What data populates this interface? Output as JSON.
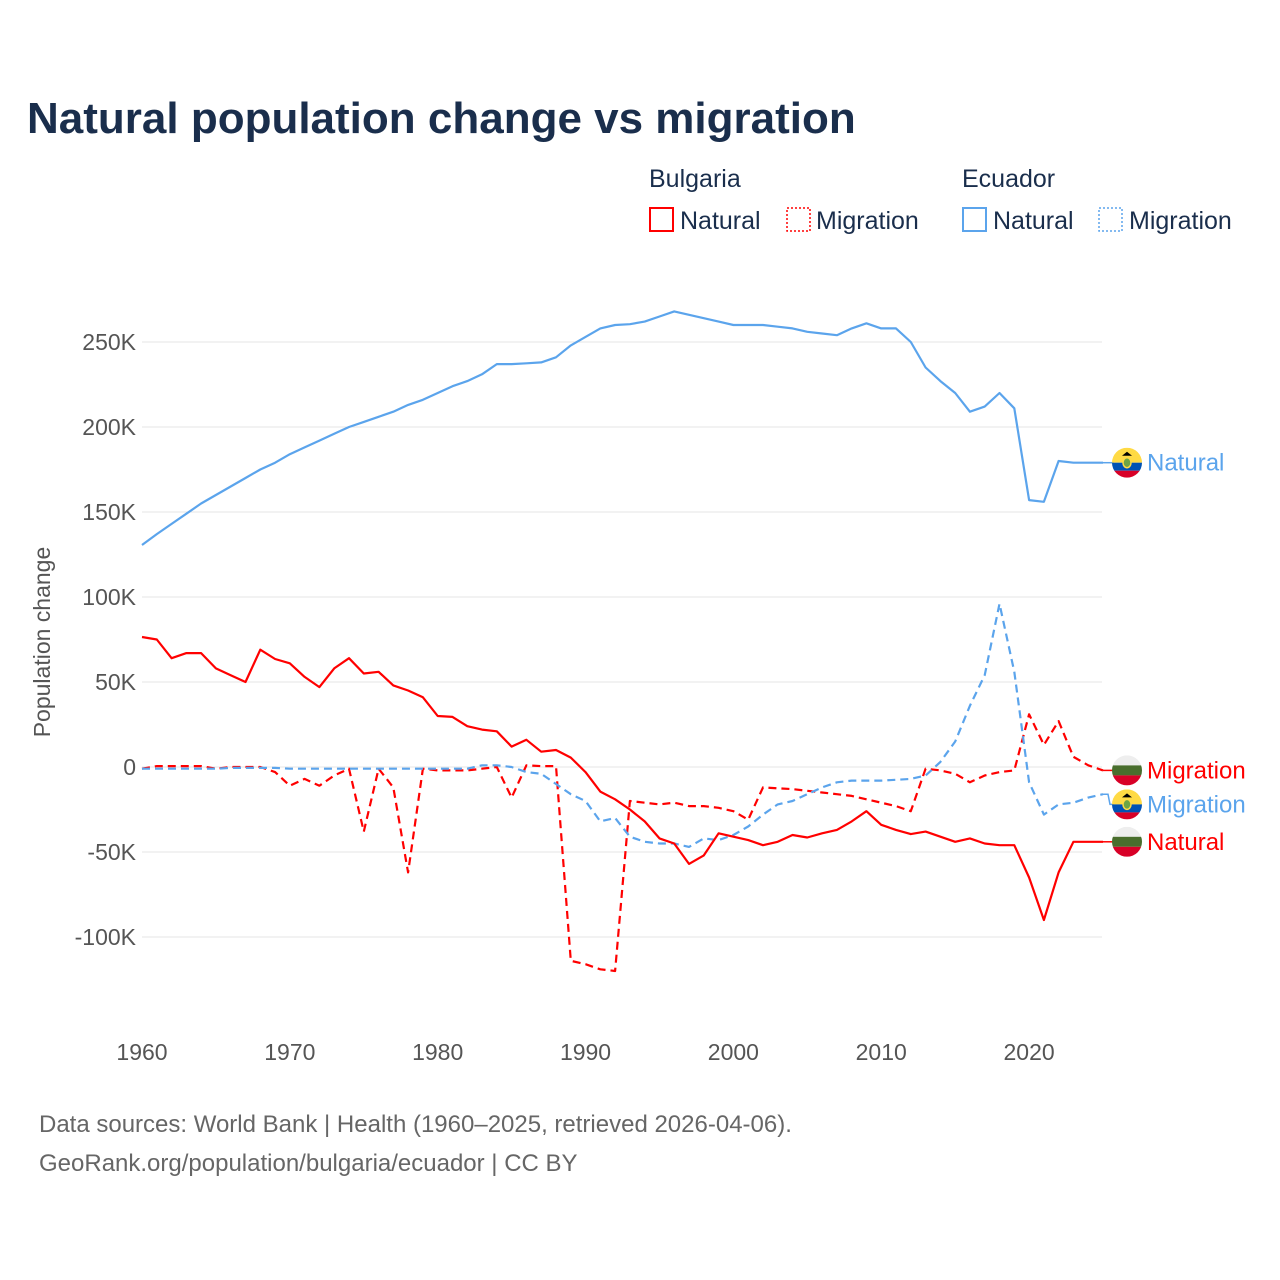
{
  "title": "Natural population change vs migration",
  "legend": [
    {
      "country": "Bulgaria",
      "items": [
        {
          "label": "Natural",
          "style": "solid"
        },
        {
          "label": "Migration",
          "style": "dotted"
        }
      ],
      "color": "#ff0000"
    },
    {
      "country": "Ecuador",
      "items": [
        {
          "label": "Natural",
          "style": "solid"
        },
        {
          "label": "Migration",
          "style": "dotted"
        }
      ],
      "color": "#5ba4ec"
    }
  ],
  "footer": {
    "line1": "Data sources: World Bank | Health (1960–2025, retrieved 2026-04-06).",
    "line2": "GeoRank.org/population/bulgaria/ecuador | CC BY"
  },
  "chart_data": {
    "type": "line",
    "title": "Natural population change vs migration",
    "xlabel": "",
    "ylabel": "Population change",
    "xlim": [
      1960,
      2025
    ],
    "ylim": [
      -145000,
      275000
    ],
    "xticks": [
      1960,
      1970,
      1980,
      1990,
      2000,
      2010,
      2020
    ],
    "yticks": [
      {
        "v": 250000,
        "label": "250K"
      },
      {
        "v": 200000,
        "label": "200K"
      },
      {
        "v": 150000,
        "label": "150K"
      },
      {
        "v": 100000,
        "label": "100K"
      },
      {
        "v": 50000,
        "label": "50K"
      },
      {
        "v": 0,
        "label": "0"
      },
      {
        "v": -50000,
        "label": "-50K"
      },
      {
        "v": -100000,
        "label": "-100K"
      }
    ],
    "grid": true,
    "legend_position": "top-right",
    "x_start": 1960,
    "series": [
      {
        "name": "Ecuador Natural",
        "label": "Natural",
        "country": "Ecuador",
        "color": "#5ba4ec",
        "dashed": false,
        "values_k": [
          130.6,
          137,
          143,
          149,
          155,
          160,
          165,
          170,
          175,
          179,
          184,
          188,
          192,
          196,
          200,
          203,
          206,
          209,
          213,
          216,
          220,
          224,
          227,
          231,
          237,
          237,
          237.5,
          238,
          241,
          248,
          253,
          258,
          260,
          260.5,
          262,
          265,
          268,
          266,
          264,
          262,
          260,
          260,
          260,
          259,
          258,
          256,
          255,
          254,
          258,
          261,
          258,
          258,
          250,
          235,
          227,
          220,
          209,
          212,
          220,
          211,
          157,
          156,
          180,
          179,
          179,
          179
        ]
      },
      {
        "name": "Bulgaria Migration",
        "label": "Migration",
        "country": "Bulgaria",
        "color": "#ff0000",
        "dashed": true,
        "values_k": [
          -1,
          0.5,
          0.5,
          0.5,
          0.5,
          -1,
          0,
          0,
          0,
          -3,
          -11,
          -7,
          -11,
          -5,
          -1,
          -38,
          -1,
          -12,
          -62,
          -1,
          -2,
          -2,
          -2,
          -1,
          0,
          -18,
          1,
          0.5,
          0.5,
          -114,
          -116,
          -119,
          -120,
          -20,
          -21,
          -22,
          -21,
          -23,
          -23,
          -24,
          -26,
          -31,
          -12,
          -12.5,
          -13,
          -14,
          -15,
          -16,
          -17,
          -19,
          -21,
          -23,
          -26,
          -1,
          -2,
          -4,
          -9,
          -5,
          -3,
          -2,
          31,
          13,
          27,
          6,
          1,
          -2
        ]
      },
      {
        "name": "Ecuador Migration",
        "label": "Migration",
        "country": "Ecuador",
        "color": "#5ba4ec",
        "dashed": true,
        "values_k": [
          -1,
          -1,
          -1,
          -1,
          -1,
          -1,
          -0.5,
          -0.5,
          -0.5,
          -0.5,
          -1,
          -1,
          -1,
          -1,
          -1,
          -1,
          -1,
          -1,
          -1,
          -1,
          -1,
          -1,
          -1,
          1,
          1,
          0,
          -3,
          -4,
          -10,
          -16,
          -20,
          -32,
          -30,
          -41,
          -44,
          -45,
          -45,
          -47,
          -42,
          -43,
          -40,
          -35,
          -28,
          -22,
          -20,
          -16,
          -12,
          -9,
          -8,
          -8,
          -8,
          -7.5,
          -7,
          -5,
          3,
          15,
          36,
          54,
          96,
          56,
          -9,
          -28,
          -22,
          -21,
          -18,
          -16
        ]
      },
      {
        "name": "Bulgaria Natural",
        "label": "Natural",
        "country": "Bulgaria",
        "color": "#ff0000",
        "dashed": false,
        "values_k": [
          76.5,
          75,
          64,
          67,
          67,
          58,
          54,
          50,
          69,
          63.5,
          61,
          53,
          47,
          58,
          64,
          55,
          56,
          48,
          45,
          41,
          30,
          29.5,
          24,
          22,
          21,
          12,
          16,
          9,
          10,
          5.5,
          -3,
          -14.5,
          -19,
          -25,
          -32,
          -42,
          -45,
          -57,
          -52,
          -39,
          -41,
          -43,
          -46,
          -44,
          -40,
          -41.5,
          -39,
          -37,
          -32,
          -26,
          -34,
          -37,
          -39.5,
          -38,
          -41,
          -44,
          -42,
          -45,
          -46,
          -46,
          -65,
          -90,
          -62,
          -44,
          -44,
          -44
        ]
      }
    ]
  }
}
